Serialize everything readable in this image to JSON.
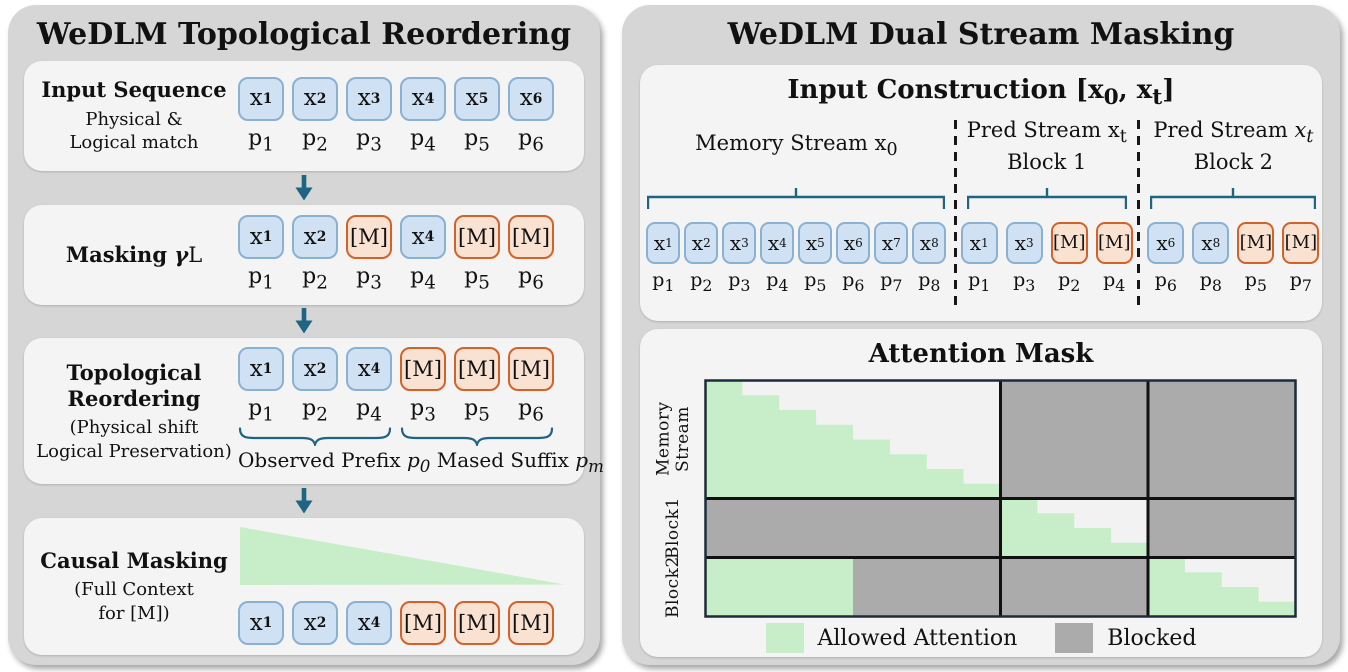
{
  "colors": {
    "panel_bg": "#d6d6d6",
    "box_bg": "#f4f4f4",
    "text": "#111111",
    "teal": "#1f6482",
    "observed_fill": "#cfe1f2",
    "observed_border": "#8ab0d2",
    "masked_fill": "#f9e2d2",
    "masked_border": "#d2622a",
    "allowed_green": "#c8edc9",
    "blocked_gray": "#ababab",
    "mask_cell_bg": "#f2f2f2",
    "grid_line": "#111111",
    "grid_outer": "#1b2c3c"
  },
  "left_panel": {
    "title": "WeDLM Topological Reordering",
    "steps": [
      {
        "id": "input-sequence",
        "heading_html": "Input Sequence",
        "sub_html": "Physical &<br>Logical match",
        "tokens": [
          {
            "html": "x<sub><b>1</b></sub>",
            "type": "observed"
          },
          {
            "html": "x<sub><b>2</b></sub>",
            "type": "observed"
          },
          {
            "html": "x<sub><b>3</b></sub>",
            "type": "observed"
          },
          {
            "html": "x<sub><b>4</b></sub>",
            "type": "observed"
          },
          {
            "html": "x<sub><b>5</b></sub>",
            "type": "observed"
          },
          {
            "html": "x<sub><b>6</b></sub>",
            "type": "observed"
          }
        ],
        "positions": [
          "p<sub>1</sub>",
          "p<sub>2</sub>",
          "p<sub>3</sub>",
          "p<sub>4</sub>",
          "p<sub>5</sub>",
          "p<sub>6</sub>"
        ]
      },
      {
        "id": "masking",
        "heading_html": "Masking <i>γ</i><span class=\"nb\">L</span>",
        "sub_html": "",
        "tokens": [
          {
            "html": "x<sub><b>1</b></sub>",
            "type": "observed"
          },
          {
            "html": "x<sub><b>2</b></sub>",
            "type": "observed"
          },
          {
            "html": "[M]",
            "type": "masked"
          },
          {
            "html": "x<sub><b>4</b></sub>",
            "type": "observed"
          },
          {
            "html": "[M]",
            "type": "masked"
          },
          {
            "html": "[M]",
            "type": "masked"
          }
        ],
        "positions": [
          "p<sub>1</sub>",
          "p<sub>2</sub>",
          "p<sub>3</sub>",
          "p<sub>4</sub>",
          "p<sub>5</sub>",
          "p<sub>6</sub>"
        ]
      },
      {
        "id": "topological-reordering",
        "heading_html": "Topological<br>Reordering",
        "sub_html": "(Physical shift<br>Logical Preservation)",
        "tokens": [
          {
            "html": "x<sub><b>1</b></sub>",
            "type": "observed"
          },
          {
            "html": "x<sub><b>2</b></sub>",
            "type": "observed"
          },
          {
            "html": "x<sub><b>4</b></sub>",
            "type": "observed"
          },
          {
            "html": "[M]",
            "type": "masked"
          },
          {
            "html": "[M]",
            "type": "masked"
          },
          {
            "html": "[M]",
            "type": "masked"
          }
        ],
        "positions": [
          "p<sub>1</sub>",
          "p<sub>2</sub>",
          "p<sub>4</sub>",
          "p<sub>3</sub>",
          "p<sub>5</sub>",
          "p<sub>6</sub>"
        ],
        "underbraces": 2,
        "caption_html": "Observed Prefix <i>p</i><sub><i>0</i></sub> Mased Suffix <i>p</i><sub><i>m</i></sub>"
      },
      {
        "id": "causal-masking",
        "heading_html": "Causal Masking",
        "sub_html": "(Full Context<br>for [M])",
        "triangle": true,
        "tokens": [
          {
            "html": "x<sub><b>1</b></sub>",
            "type": "observed"
          },
          {
            "html": "x<sub><b>2</b></sub>",
            "type": "observed"
          },
          {
            "html": "x<sub><b>4</b></sub>",
            "type": "observed"
          },
          {
            "html": "[M]",
            "type": "masked"
          },
          {
            "html": "[M]",
            "type": "masked"
          },
          {
            "html": "[M]",
            "type": "masked"
          }
        ]
      }
    ]
  },
  "right_panel": {
    "title": "WeDLM Dual Stream Masking",
    "input_construction": {
      "title_html": "Input Construction [x<sub>0</sub>, x<sub>t</sub>]",
      "groups": [
        {
          "id": "memory-stream",
          "label_html": "Memory Stream x<sub>0</sub>",
          "label2_html": "",
          "tokens": [
            {
              "html": "x<sub>1</sub>",
              "type": "observed"
            },
            {
              "html": "x<sub>2</sub>",
              "type": "observed"
            },
            {
              "html": "x<sub>3</sub>",
              "type": "observed"
            },
            {
              "html": "x<sub>4</sub>",
              "type": "observed"
            },
            {
              "html": "x<sub>5</sub>",
              "type": "observed"
            },
            {
              "html": "x<sub>6</sub>",
              "type": "observed"
            },
            {
              "html": "x<sub>7</sub>",
              "type": "observed"
            },
            {
              "html": "x<sub>8</sub>",
              "type": "observed"
            }
          ],
          "positions": [
            "p<sub>1</sub>",
            "p<sub>2</sub>",
            "p<sub>3</sub>",
            "p<sub>4</sub>",
            "p<sub>5</sub>",
            "p<sub>6</sub>",
            "p<sub>7</sub>",
            "p<sub>8</sub>"
          ]
        },
        {
          "id": "pred-stream-block1",
          "label_html": "Pred Stream x<sub>t</sub>",
          "label2_html": "Block 1",
          "tokens": [
            {
              "html": "x<sub>1</sub>",
              "type": "observed"
            },
            {
              "html": "x<sub>3</sub>",
              "type": "observed"
            },
            {
              "html": "[M]",
              "type": "masked"
            },
            {
              "html": "[M]",
              "type": "masked"
            }
          ],
          "positions": [
            "p<sub>1</sub>",
            "p<sub>3</sub>",
            "p<sub>2</sub>",
            "p<sub>4</sub>"
          ]
        },
        {
          "id": "pred-stream-block2",
          "label_html": "Pred Stream <i>x<sub>t</sub></i>",
          "label2_html": "Block 2",
          "tokens": [
            {
              "html": "x<sub>6</sub>",
              "type": "observed"
            },
            {
              "html": "x<sub>8</sub>",
              "type": "observed"
            },
            {
              "html": "[M]",
              "type": "masked"
            },
            {
              "html": "[M]",
              "type": "masked"
            }
          ],
          "positions": [
            "p<sub>6</sub>",
            "p<sub>8</sub>",
            "p<sub>5</sub>",
            "p<sub>7</sub>"
          ]
        }
      ]
    },
    "attention_mask": {
      "title": "Attention Mask",
      "row_labels_html": [
        "Memory<br>Stream",
        "Block1",
        "Block2"
      ],
      "col_units": [
        8,
        4,
        4
      ],
      "row_units": [
        8,
        4,
        4
      ],
      "cells": [
        [
          "causal:8",
          "blocked",
          "blocked"
        ],
        [
          "blocked",
          "causal:4",
          "blocked"
        ],
        [
          "green-left:0.5",
          "blocked",
          "causal:4"
        ]
      ],
      "legend": [
        {
          "id": "allowed",
          "label": "Allowed Attention",
          "color_key": "allowed_green"
        },
        {
          "id": "blocked",
          "label": "Blocked",
          "color_key": "blocked_gray"
        }
      ]
    }
  }
}
